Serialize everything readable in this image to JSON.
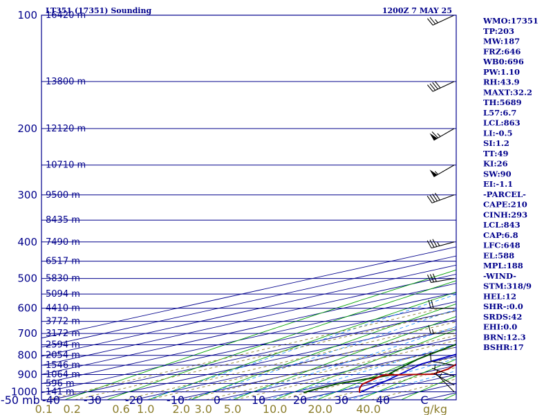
{
  "header": {
    "station": "LT351 (17351) Sounding",
    "time": "1200Z  7 MAY 25"
  },
  "colors": {
    "frame": "#00008b",
    "isobar": "#00008b",
    "isotherm": "#00008b",
    "dry_adiabat": "#00a000",
    "moist_adiabat": "#1e90ff",
    "mixing_ratio": "#8b7d2b",
    "temperature": "#b00000",
    "dewpoint": "#005000",
    "parcel": "#0000c0",
    "wind": "#000000"
  },
  "indices": [
    "WMO:17351",
    "TP:203",
    "MW:187",
    "FRZ:646",
    "WB0:696",
    "PW:1.10",
    "RH:43.9",
    "MAXT:32.2",
    "TH:5689",
    "L57:6.7",
    "LCL:863",
    "LI:-0.5",
    "SI:1.2",
    "TT:49",
    "KI:26",
    "SW:90",
    "EI:-1.1",
    "-PARCEL-",
    "CAPE:210",
    "CINH:293",
    "LCL:843",
    "CAP:6.8",
    "LFC:648",
    "EL:588",
    "MPL:188",
    "-WIND-",
    "STM:318/9",
    "HEL:12",
    "SHR-:0.0",
    "SRDS:42",
    "EHI:0.0",
    "BRN:12.3",
    "BSHR:17"
  ],
  "chart_data": {
    "type": "skew-t log-p",
    "pressure_axis": {
      "unit": "mb",
      "range": [
        1000,
        100
      ],
      "scale": "log",
      "labels": [
        "100",
        "200",
        "300",
        "400",
        "500",
        "600",
        "700",
        "800",
        "900",
        "1000"
      ],
      "label_values": [
        100,
        200,
        300,
        400,
        500,
        600,
        700,
        800,
        900,
        1000
      ]
    },
    "temperature_axis": {
      "unit_label": "mb",
      "labels": [
        "-50",
        "-40",
        "-30",
        "-20",
        "-10",
        "0",
        "10",
        "20",
        "30",
        "40",
        "C"
      ],
      "label_values": [
        -50,
        -40,
        -30,
        -20,
        -10,
        0,
        10,
        20,
        30,
        40,
        50
      ],
      "range": [
        -50,
        50
      ]
    },
    "mixing_ratio_axis": {
      "unit_label": "g/kg",
      "labels": [
        "0.1",
        "0.2",
        "0.6",
        "1.0",
        "2.0",
        "3.0",
        "5.0",
        "10.0",
        "20.0",
        "40.0"
      ],
      "label_values": [
        0.1,
        0.2,
        0.6,
        1.0,
        2.0,
        3.0,
        5.0,
        10.0,
        20.0,
        40.0
      ]
    },
    "height_levels": [
      {
        "p": 1000,
        "label": "141 m"
      },
      {
        "p": 950,
        "label": "596 m"
      },
      {
        "p": 900,
        "label": "1064 m"
      },
      {
        "p": 850,
        "label": "1546 m"
      },
      {
        "p": 800,
        "label": "2054 m"
      },
      {
        "p": 750,
        "label": "2594 m"
      },
      {
        "p": 700,
        "label": "3172 m"
      },
      {
        "p": 650,
        "label": "3772 m"
      },
      {
        "p": 600,
        "label": "4410 m"
      },
      {
        "p": 550,
        "label": "5094 m"
      },
      {
        "p": 500,
        "label": "5830 m"
      },
      {
        "p": 450,
        "label": "6517 m"
      },
      {
        "p": 400,
        "label": "7490 m"
      },
      {
        "p": 350,
        "label": "8435 m"
      },
      {
        "p": 300,
        "label": "9500 m"
      },
      {
        "p": 250,
        "label": "10710 m"
      },
      {
        "p": 200,
        "label": "12120 m"
      },
      {
        "p": 150,
        "label": "13800 m"
      },
      {
        "p": 100,
        "label": "16420 m"
      }
    ],
    "temperature_profile": [
      [
        1005,
        26.5
      ],
      [
        980,
        22
      ],
      [
        955,
        18
      ],
      [
        903,
        13
      ],
      [
        898,
        24
      ],
      [
        870,
        22
      ],
      [
        825,
        16
      ],
      [
        785,
        10
      ],
      [
        750,
        5
      ],
      [
        715,
        1
      ],
      [
        670,
        -2
      ],
      [
        640,
        -3.5
      ],
      [
        600,
        -5.5
      ],
      [
        550,
        -9.5
      ],
      [
        500,
        -13.5
      ],
      [
        450,
        -19.5
      ],
      [
        400,
        -26
      ],
      [
        350,
        -31.5
      ],
      [
        300,
        -38
      ],
      [
        250,
        -47
      ],
      [
        207,
        -56
      ],
      [
        203,
        -57
      ],
      [
        180,
        -54
      ],
      [
        150,
        -46
      ],
      [
        120,
        -40
      ],
      [
        100,
        -33
      ]
    ],
    "dewpoint_profile": [
      [
        1005,
        13
      ],
      [
        980,
        12
      ],
      [
        950,
        11.5
      ],
      [
        900,
        15
      ],
      [
        895,
        13
      ],
      [
        870,
        10
      ],
      [
        820,
        4
      ],
      [
        780,
        0
      ],
      [
        740,
        -4
      ],
      [
        700,
        -8
      ],
      [
        660,
        -11
      ],
      [
        625,
        -16
      ],
      [
        600,
        -17
      ],
      [
        560,
        -20
      ],
      [
        505,
        -38
      ],
      [
        470,
        -33
      ],
      [
        440,
        -32
      ],
      [
        410,
        -29
      ],
      [
        400,
        -29
      ],
      [
        380,
        -27
      ],
      [
        350,
        -29
      ],
      [
        340,
        -31
      ],
      [
        300,
        -40
      ]
    ],
    "parcel_profile": [
      [
        1005,
        26.5
      ],
      [
        935,
        20
      ],
      [
        870,
        13
      ],
      [
        843,
        10
      ],
      [
        800,
        8
      ],
      [
        700,
        3
      ],
      [
        648,
        1
      ],
      [
        600,
        -2
      ],
      [
        550,
        -6
      ],
      [
        500,
        -11
      ],
      [
        450,
        -17
      ],
      [
        400,
        -23
      ],
      [
        350,
        -31
      ],
      [
        300,
        -39
      ],
      [
        250,
        -49
      ],
      [
        200,
        -61
      ],
      [
        150,
        -76
      ],
      [
        120,
        -86
      ]
    ],
    "wind_barbs": [
      {
        "p": 1000,
        "dir": 315,
        "kt": 5
      },
      {
        "p": 960,
        "dir": 300,
        "kt": 5
      },
      {
        "p": 910,
        "dir": 290,
        "kt": 5
      },
      {
        "p": 850,
        "dir": 280,
        "kt": 10
      },
      {
        "p": 700,
        "dir": 270,
        "kt": 15
      },
      {
        "p": 600,
        "dir": 270,
        "kt": 20
      },
      {
        "p": 500,
        "dir": 260,
        "kt": 30
      },
      {
        "p": 400,
        "dir": 255,
        "kt": 35
      },
      {
        "p": 300,
        "dir": 250,
        "kt": 40
      },
      {
        "p": 250,
        "dir": 240,
        "kt": 55
      },
      {
        "p": 200,
        "dir": 240,
        "kt": 65
      },
      {
        "p": 150,
        "dir": 245,
        "kt": 40
      },
      {
        "p": 100,
        "dir": 245,
        "kt": 25
      }
    ]
  }
}
